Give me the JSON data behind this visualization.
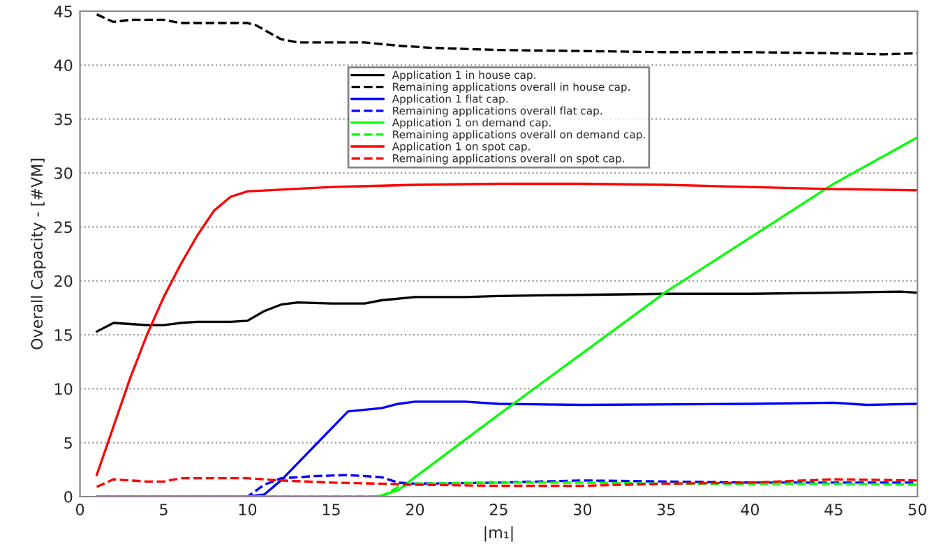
{
  "chart_data": {
    "type": "line",
    "xlabel": "|m₁|",
    "ylabel": "Overall Capacity - [#VM]",
    "xlim": [
      0,
      50
    ],
    "xticks": [
      0,
      5,
      10,
      15,
      20,
      25,
      30,
      35,
      40,
      45,
      50
    ],
    "ylim": [
      0,
      45
    ],
    "yticks": [
      0,
      5,
      10,
      15,
      20,
      25,
      30,
      35,
      40,
      45
    ],
    "grid": "y",
    "legend": "top",
    "marker": "none",
    "series": [
      {
        "name": "Application 1 in house cap.",
        "color": "#000000",
        "line_style": "solid",
        "x": [
          1,
          2,
          3,
          4,
          5,
          6,
          7,
          9,
          10,
          11,
          12,
          13,
          15,
          17,
          18,
          20,
          23,
          25,
          30,
          35,
          40,
          45,
          49,
          50
        ],
        "values": [
          15.3,
          16.1,
          16,
          15.9,
          15.9,
          16.1,
          16.2,
          16.2,
          16.3,
          17.2,
          17.8,
          18,
          17.9,
          17.9,
          18.2,
          18.5,
          18.5,
          18.6,
          18.7,
          18.8,
          18.8,
          18.9,
          19,
          18.9
        ]
      },
      {
        "name": "Remaining applications overall in house cap.",
        "color": "#000000",
        "line_style": "dashed",
        "x": [
          1,
          2,
          3,
          5,
          6,
          10,
          10.5,
          12,
          13,
          17,
          19,
          21,
          25,
          30,
          35,
          40,
          45,
          48,
          50
        ],
        "values": [
          44.7,
          44,
          44.2,
          44.2,
          43.9,
          43.9,
          43.7,
          42.4,
          42.1,
          42.1,
          41.8,
          41.6,
          41.4,
          41.3,
          41.2,
          41.2,
          41.1,
          41,
          41.1
        ]
      },
      {
        "name": "Application 1 flat cap.",
        "color": "#0000ff",
        "line_style": "solid",
        "x": [
          1,
          10,
          11,
          12,
          14,
          16,
          18,
          19,
          20,
          23,
          25,
          30,
          40,
          45,
          47,
          50
        ],
        "values": [
          0,
          0,
          0.2,
          1.5,
          4.7,
          7.9,
          8.2,
          8.6,
          8.8,
          8.8,
          8.6,
          8.5,
          8.6,
          8.7,
          8.5,
          8.6
        ]
      },
      {
        "name": "Remaining applications overall flat cap.",
        "color": "#0000ff",
        "line_style": "dashed",
        "x": [
          1,
          10,
          11,
          12,
          14,
          16,
          18,
          19,
          20,
          25,
          30,
          35,
          40,
          45,
          50
        ],
        "values": [
          0,
          0,
          1.1,
          1.7,
          1.9,
          2,
          1.8,
          1.3,
          1.2,
          1.3,
          1.5,
          1.4,
          1.3,
          1.3,
          1.3
        ]
      },
      {
        "name": "Application 1 on demand cap.",
        "color": "#00ff00",
        "line_style": "solid",
        "x": [
          1,
          17.5,
          18,
          19,
          20,
          25,
          30,
          35,
          40,
          45,
          50
        ],
        "values": [
          0,
          0,
          0.1,
          0.6,
          1.8,
          7.6,
          13.3,
          19,
          24,
          29,
          33.3
        ]
      },
      {
        "name": "Remaining applications overall on demand cap.",
        "color": "#00ff00",
        "line_style": "dashed",
        "x": [
          1,
          18,
          19,
          20,
          25,
          30,
          35,
          40,
          45,
          50
        ],
        "values": [
          0,
          0,
          0.9,
          1.2,
          1.3,
          1.3,
          1.2,
          1.2,
          1.2,
          1.1
        ]
      },
      {
        "name": "Application 1 on spot cap.",
        "color": "#ff0000",
        "line_style": "solid",
        "x": [
          1,
          2,
          3,
          4,
          5,
          6,
          7,
          8,
          9,
          10,
          15,
          20,
          25,
          30,
          35,
          40,
          45,
          50
        ],
        "values": [
          2,
          6.5,
          11,
          15,
          18.5,
          21.5,
          24.2,
          26.5,
          27.8,
          28.3,
          28.7,
          28.9,
          29,
          29,
          28.9,
          28.7,
          28.5,
          28.4
        ]
      },
      {
        "name": "Remaining applications overall on spot cap.",
        "color": "#ff0000",
        "line_style": "dashed",
        "x": [
          1,
          2,
          3,
          4,
          5,
          6,
          10,
          12,
          15,
          18,
          20,
          25,
          30,
          35,
          40,
          45,
          50
        ],
        "values": [
          0.9,
          1.6,
          1.5,
          1.4,
          1.4,
          1.7,
          1.7,
          1.5,
          1.3,
          1.2,
          1.1,
          1,
          1,
          1.2,
          1.3,
          1.6,
          1.5
        ]
      }
    ]
  }
}
